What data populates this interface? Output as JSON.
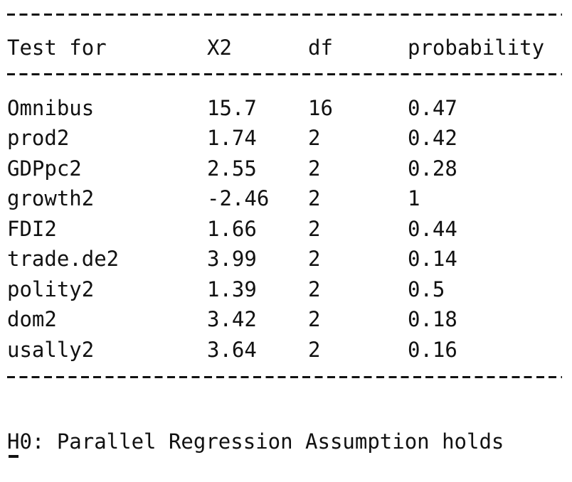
{
  "table": {
    "headers": [
      "Test for",
      "X2",
      "df",
      "probability"
    ],
    "rows": [
      {
        "test": "Omnibus",
        "x2": "15.7",
        "df": "16",
        "probability": "0.47"
      },
      {
        "test": "prod2",
        "x2": "1.74",
        "df": "2",
        "probability": "0.42"
      },
      {
        "test": "GDPpc2",
        "x2": "2.55",
        "df": "2",
        "probability": "0.28"
      },
      {
        "test": "growth2",
        "x2": "-2.46",
        "df": "2",
        "probability": "1"
      },
      {
        "test": "FDI2",
        "x2": "1.66",
        "df": "2",
        "probability": "0.44"
      },
      {
        "test": "trade.de2",
        "x2": "3.99",
        "df": "2",
        "probability": "0.14"
      },
      {
        "test": "polity2",
        "x2": "1.39",
        "df": "2",
        "probability": "0.5"
      },
      {
        "test": "dom2",
        "x2": "3.42",
        "df": "2",
        "probability": "0.18"
      },
      {
        "test": "usally2",
        "x2": "3.64",
        "df": "2",
        "probability": "0.16"
      }
    ]
  },
  "note": "H0: Parallel Regression Assumption holds"
}
